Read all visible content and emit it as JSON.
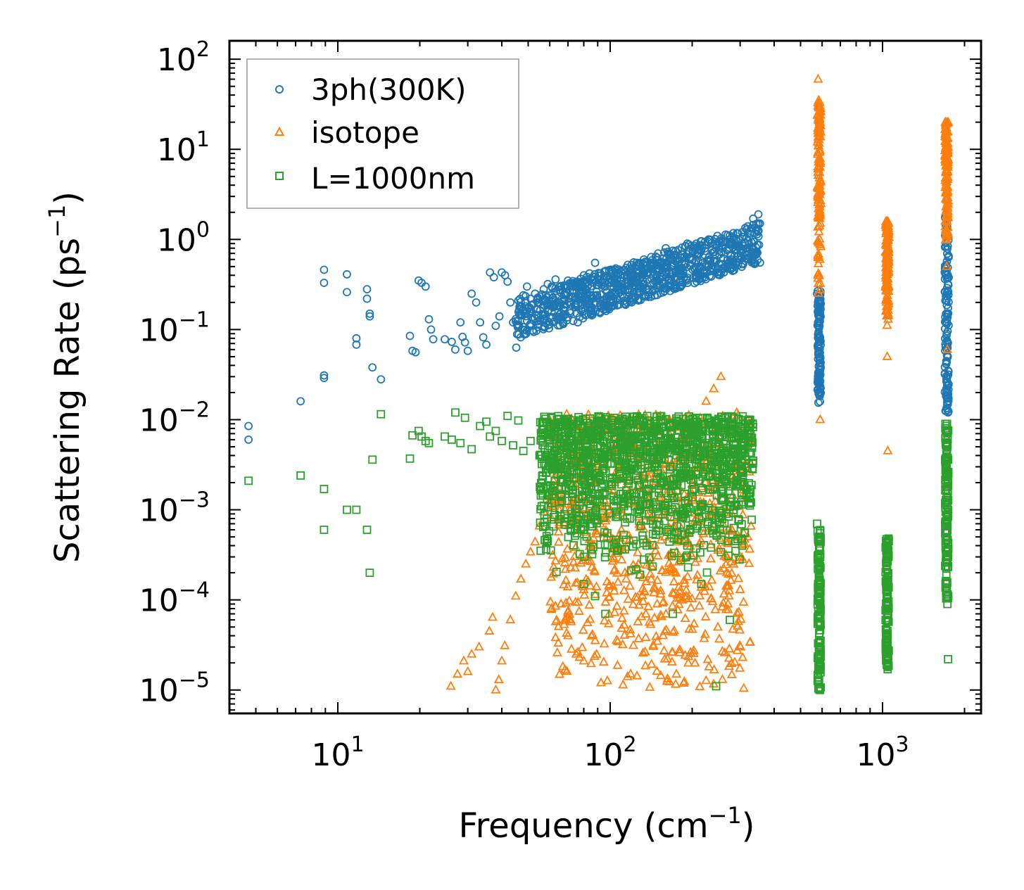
{
  "chart_data": {
    "type": "scatter",
    "title": "",
    "xlabel": "Frequency (cm",
    "xlabel_sup": "−1",
    "xlabel_end": ")",
    "ylabel": "Scattering Rate (ps",
    "ylabel_sup": "−1",
    "ylabel_end": ")",
    "xscale": "log",
    "yscale": "log",
    "xlim": [
      4.0,
      2300
    ],
    "ylim": [
      5.5e-06,
      160
    ],
    "x_ticks": [
      {
        "value": 10,
        "base": "10",
        "exp": "1"
      },
      {
        "value": 100,
        "base": "10",
        "exp": "2"
      },
      {
        "value": 1000,
        "base": "10",
        "exp": "3"
      }
    ],
    "y_ticks": [
      {
        "value": 1e-05,
        "base": "10",
        "exp": "−5"
      },
      {
        "value": 0.0001,
        "base": "10",
        "exp": "−4"
      },
      {
        "value": 0.001,
        "base": "10",
        "exp": "−3"
      },
      {
        "value": 0.01,
        "base": "10",
        "exp": "−2"
      },
      {
        "value": 0.1,
        "base": "10",
        "exp": "−1"
      },
      {
        "value": 1,
        "base": "10",
        "exp": "0"
      },
      {
        "value": 10,
        "base": "10",
        "exp": "1"
      },
      {
        "value": 100,
        "base": "10",
        "exp": "2"
      }
    ],
    "legend_position": "top-left",
    "series": [
      {
        "name": "3ph(300K)",
        "marker": "circle",
        "color": "#1f77b4",
        "x": [
          4.7,
          4.7,
          7.3,
          8.9,
          8.9,
          8.9,
          8.9,
          10.8,
          10.8,
          11.7,
          11.7,
          12.8,
          12.8,
          13.1,
          13.1,
          13.4,
          14.4,
          18.4,
          18.8,
          19.3,
          19.8,
          20.3,
          21.0,
          21.6,
          22.0,
          22.4,
          24.7,
          26.2,
          27.0,
          28.2,
          28.7,
          29.3,
          30.0,
          31.0,
          32.2,
          33.3,
          34.2,
          35.1,
          36.2,
          37.4,
          38.0,
          39.2,
          40.0,
          41.1,
          42.0,
          43.0,
          44.0,
          45.2,
          46.0,
          47.3,
          48.0,
          49.5,
          51.0,
          53.0,
          55.0,
          57.0,
          59.0,
          61.0,
          63.0,
          66.0,
          68.0,
          70.0,
          73.0,
          76.0,
          80.0,
          84.0,
          88.0,
          92.0,
          96.0,
          101,
          106,
          112,
          118,
          125,
          133,
          141,
          150,
          160,
          170,
          180,
          192,
          204,
          216,
          230,
          245,
          260,
          275,
          290,
          305,
          320,
          335,
          350,
          575,
          580,
          585,
          590,
          1700,
          1710,
          1720,
          1730,
          1740
        ],
        "y": [
          0.0085,
          0.006,
          0.016,
          0.46,
          0.33,
          0.031,
          0.029,
          0.41,
          0.26,
          0.08,
          0.068,
          0.28,
          0.22,
          0.15,
          0.14,
          0.038,
          0.028,
          0.085,
          0.058,
          0.056,
          0.35,
          0.33,
          0.3,
          0.13,
          0.1,
          0.078,
          0.078,
          0.073,
          0.06,
          0.12,
          0.083,
          0.072,
          0.058,
          0.25,
          0.2,
          0.12,
          0.082,
          0.068,
          0.43,
          0.38,
          0.11,
          0.14,
          0.43,
          0.4,
          0.34,
          0.2,
          0.12,
          0.063,
          0.21,
          0.18,
          0.24,
          0.3,
          0.22,
          0.25,
          0.2,
          0.28,
          0.32,
          0.3,
          0.36,
          0.3,
          0.25,
          0.35,
          0.3,
          0.12,
          0.4,
          0.42,
          0.55,
          0.42,
          0.3,
          0.35,
          0.35,
          0.45,
          0.42,
          0.55,
          0.6,
          0.55,
          0.7,
          0.8,
          0.75,
          0.65,
          0.9,
          0.85,
          0.75,
          1.0,
          0.8,
          0.95,
          0.9,
          0.85,
          1.2,
          1.4,
          1.7,
          1.9,
          0.25,
          0.12,
          0.05,
          0.02,
          0.21,
          0.12,
          0.06,
          0.03,
          0.012
        ]
      },
      {
        "name": "isotope",
        "marker": "triangle",
        "color": "#ff7f0e",
        "x": [
          26.0,
          27.5,
          29.0,
          30.0,
          31.0,
          33.0,
          36.0,
          37.0,
          38.0,
          39.0,
          40.0,
          41.0,
          43.0,
          45.0,
          47.0,
          49.0,
          51.0,
          53.0,
          55.0,
          57.0,
          60.0,
          63.0,
          66.0,
          70.0,
          75.0,
          80.0,
          86.0,
          92.0,
          100,
          108,
          118,
          128,
          140,
          150,
          160,
          170,
          175,
          180,
          190,
          200,
          212,
          225,
          240,
          255,
          265,
          280,
          300,
          320,
          580,
          585,
          590,
          1030,
          1035,
          1040,
          1045,
          1700,
          1710,
          1720,
          1730,
          1740
        ],
        "y": [
          1.1e-05,
          1.5e-05,
          2.1e-05,
          1.6e-05,
          2.5e-05,
          3e-05,
          4.5e-05,
          6.4e-05,
          1e-05,
          1.3e-05,
          2.1e-05,
          3.1e-05,
          6e-05,
          0.00011,
          0.00017,
          0.00025,
          0.00034,
          0.00044,
          0.00066,
          0.00095,
          0.0014,
          0.00027,
          9e-05,
          4e-05,
          2.5e-05,
          2.1e-05,
          0.00035,
          0.0007,
          0.001,
          0.0035,
          0.0055,
          0.0085,
          0.0075,
          0.0045,
          0.0012,
          0.00022,
          1.5e-05,
          2.8e-05,
          0.00011,
          0.0015,
          0.0045,
          0.016,
          0.022,
          0.03,
          0.0046,
          0.0006,
          0.00013,
          0.0005,
          60.0,
          15.0,
          0.01,
          1.5,
          0.35,
          0.05,
          0.0045,
          20.0,
          4.0,
          0.5,
          0.06,
          0.001
        ],
        "x_band": [
          [
            60,
            330
          ]
        ],
        "dense_bands": [
          {
            "x": 585,
            "ymin": 0.2,
            "ymax": 35
          },
          {
            "x": 1040,
            "ymin": 0.08,
            "ymax": 1.6
          },
          {
            "x": 1720,
            "ymin": 0.6,
            "ymax": 20
          }
        ]
      },
      {
        "name": "L=1000nm",
        "marker": "square",
        "color": "#2ca02c",
        "x": [
          4.7,
          7.3,
          8.9,
          8.9,
          10.8,
          11.7,
          12.8,
          13.1,
          13.4,
          14.4,
          18.4,
          18.8,
          19.8,
          20.3,
          21.0,
          21.6,
          24.7,
          26.2,
          27.0,
          28.2,
          29.3,
          31.0,
          33.3,
          35.1,
          36.2,
          38.0,
          40.0,
          42.0,
          44.0,
          46.0,
          48.0,
          51.0,
          55.0,
          60.0,
          66.0,
          73.0,
          80.0,
          88.0,
          96.0,
          106,
          118,
          133,
          150,
          170,
          192,
          216,
          245,
          275,
          305,
          335,
          575,
          580,
          585,
          590,
          1030,
          1035,
          1040,
          1045,
          1700,
          1710,
          1720,
          1730,
          1740
        ],
        "y": [
          0.0021,
          0.0024,
          0.0017,
          0.0006,
          0.001,
          0.001,
          0.0006,
          0.0002,
          0.0036,
          0.0115,
          0.0037,
          0.0067,
          0.0075,
          0.0065,
          0.0058,
          0.0055,
          0.0065,
          0.006,
          0.012,
          0.0055,
          0.0105,
          0.0047,
          0.0085,
          0.0095,
          0.0065,
          0.0075,
          0.0058,
          0.011,
          0.0052,
          0.0098,
          0.0045,
          0.0058,
          0.004,
          0.003,
          0.0025,
          0.0015,
          0.00015,
          0.00011,
          7e-05,
          0.00035,
          0.0008,
          0.00028,
          0.0009,
          7e-05,
          0.0004,
          0.00015,
          1.1e-05,
          6e-05,
          0.0004,
          0.0035,
          0.0007,
          0.00015,
          3e-05,
          1e-05,
          0.00045,
          8e-05,
          2.5e-05,
          1.8e-05,
          0.008,
          0.0025,
          0.0003,
          9e-05,
          2.2e-05
        ],
        "x_band": [
          [
            60,
            330
          ]
        ],
        "dense_bands": [
          {
            "x": 585,
            "ymin": 1e-05,
            "ymax": 0.0006
          },
          {
            "x": 1040,
            "ymin": 1.7e-05,
            "ymax": 0.00048
          },
          {
            "x": 1720,
            "ymin": 0.0001,
            "ymax": 0.009
          }
        ]
      }
    ]
  }
}
